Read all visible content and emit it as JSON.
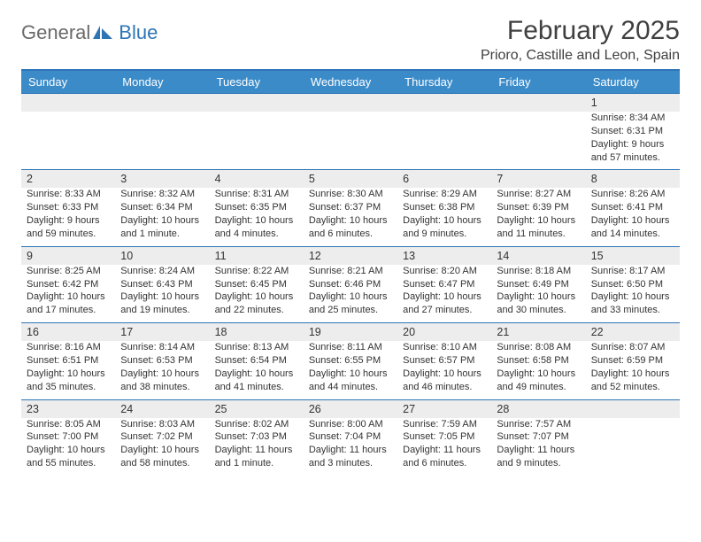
{
  "logo": {
    "word1": "General",
    "word2": "Blue"
  },
  "title": "February 2025",
  "location": "Prioro, Castille and Leon, Spain",
  "colors": {
    "header_bg": "#3b8bc9",
    "header_rule": "#2e75b6",
    "daynum_bg": "#ededed",
    "text": "#333333",
    "logo_gray": "#6a6a6a",
    "logo_blue": "#2e75b6"
  },
  "day_names": [
    "Sunday",
    "Monday",
    "Tuesday",
    "Wednesday",
    "Thursday",
    "Friday",
    "Saturday"
  ],
  "weeks": [
    [
      null,
      null,
      null,
      null,
      null,
      null,
      {
        "n": "1",
        "sunrise": "8:34 AM",
        "sunset": "6:31 PM",
        "daylight": "9 hours and 57 minutes."
      }
    ],
    [
      {
        "n": "2",
        "sunrise": "8:33 AM",
        "sunset": "6:33 PM",
        "daylight": "9 hours and 59 minutes."
      },
      {
        "n": "3",
        "sunrise": "8:32 AM",
        "sunset": "6:34 PM",
        "daylight": "10 hours and 1 minute."
      },
      {
        "n": "4",
        "sunrise": "8:31 AM",
        "sunset": "6:35 PM",
        "daylight": "10 hours and 4 minutes."
      },
      {
        "n": "5",
        "sunrise": "8:30 AM",
        "sunset": "6:37 PM",
        "daylight": "10 hours and 6 minutes."
      },
      {
        "n": "6",
        "sunrise": "8:29 AM",
        "sunset": "6:38 PM",
        "daylight": "10 hours and 9 minutes."
      },
      {
        "n": "7",
        "sunrise": "8:27 AM",
        "sunset": "6:39 PM",
        "daylight": "10 hours and 11 minutes."
      },
      {
        "n": "8",
        "sunrise": "8:26 AM",
        "sunset": "6:41 PM",
        "daylight": "10 hours and 14 minutes."
      }
    ],
    [
      {
        "n": "9",
        "sunrise": "8:25 AM",
        "sunset": "6:42 PM",
        "daylight": "10 hours and 17 minutes."
      },
      {
        "n": "10",
        "sunrise": "8:24 AM",
        "sunset": "6:43 PM",
        "daylight": "10 hours and 19 minutes."
      },
      {
        "n": "11",
        "sunrise": "8:22 AM",
        "sunset": "6:45 PM",
        "daylight": "10 hours and 22 minutes."
      },
      {
        "n": "12",
        "sunrise": "8:21 AM",
        "sunset": "6:46 PM",
        "daylight": "10 hours and 25 minutes."
      },
      {
        "n": "13",
        "sunrise": "8:20 AM",
        "sunset": "6:47 PM",
        "daylight": "10 hours and 27 minutes."
      },
      {
        "n": "14",
        "sunrise": "8:18 AM",
        "sunset": "6:49 PM",
        "daylight": "10 hours and 30 minutes."
      },
      {
        "n": "15",
        "sunrise": "8:17 AM",
        "sunset": "6:50 PM",
        "daylight": "10 hours and 33 minutes."
      }
    ],
    [
      {
        "n": "16",
        "sunrise": "8:16 AM",
        "sunset": "6:51 PM",
        "daylight": "10 hours and 35 minutes."
      },
      {
        "n": "17",
        "sunrise": "8:14 AM",
        "sunset": "6:53 PM",
        "daylight": "10 hours and 38 minutes."
      },
      {
        "n": "18",
        "sunrise": "8:13 AM",
        "sunset": "6:54 PM",
        "daylight": "10 hours and 41 minutes."
      },
      {
        "n": "19",
        "sunrise": "8:11 AM",
        "sunset": "6:55 PM",
        "daylight": "10 hours and 44 minutes."
      },
      {
        "n": "20",
        "sunrise": "8:10 AM",
        "sunset": "6:57 PM",
        "daylight": "10 hours and 46 minutes."
      },
      {
        "n": "21",
        "sunrise": "8:08 AM",
        "sunset": "6:58 PM",
        "daylight": "10 hours and 49 minutes."
      },
      {
        "n": "22",
        "sunrise": "8:07 AM",
        "sunset": "6:59 PM",
        "daylight": "10 hours and 52 minutes."
      }
    ],
    [
      {
        "n": "23",
        "sunrise": "8:05 AM",
        "sunset": "7:00 PM",
        "daylight": "10 hours and 55 minutes."
      },
      {
        "n": "24",
        "sunrise": "8:03 AM",
        "sunset": "7:02 PM",
        "daylight": "10 hours and 58 minutes."
      },
      {
        "n": "25",
        "sunrise": "8:02 AM",
        "sunset": "7:03 PM",
        "daylight": "11 hours and 1 minute."
      },
      {
        "n": "26",
        "sunrise": "8:00 AM",
        "sunset": "7:04 PM",
        "daylight": "11 hours and 3 minutes."
      },
      {
        "n": "27",
        "sunrise": "7:59 AM",
        "sunset": "7:05 PM",
        "daylight": "11 hours and 6 minutes."
      },
      {
        "n": "28",
        "sunrise": "7:57 AM",
        "sunset": "7:07 PM",
        "daylight": "11 hours and 9 minutes."
      },
      null
    ]
  ],
  "labels": {
    "sunrise": "Sunrise: ",
    "sunset": "Sunset: ",
    "daylight": "Daylight: "
  }
}
